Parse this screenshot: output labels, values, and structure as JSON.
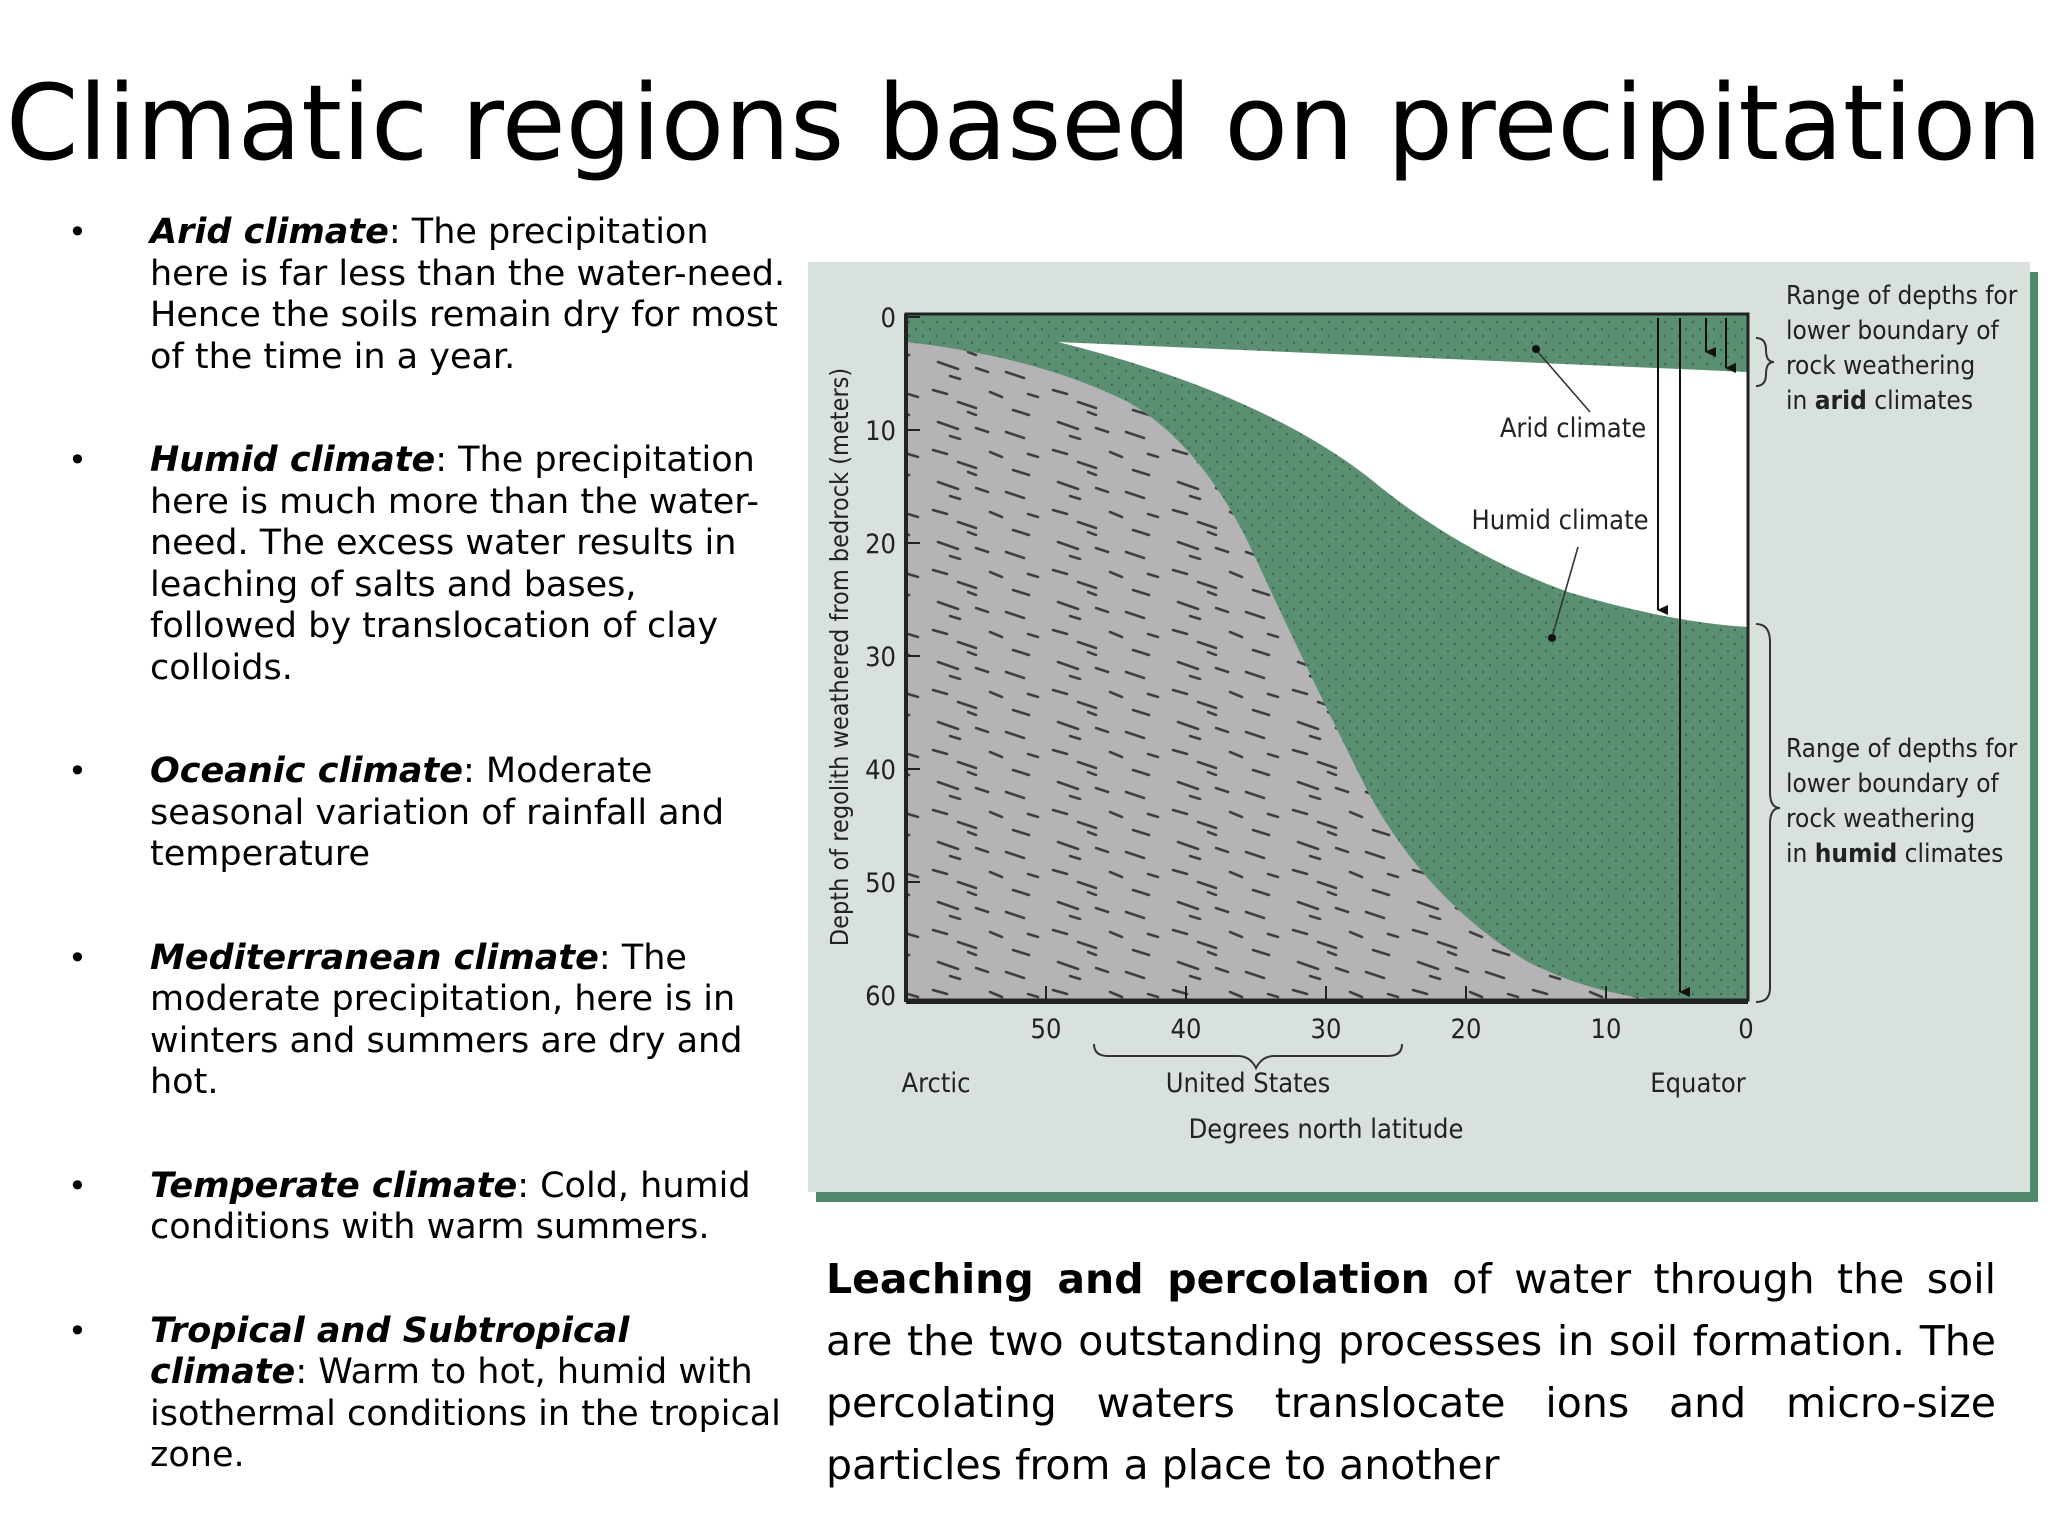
{
  "slide": {
    "title": "Climatic regions based on precipitation",
    "bullets": [
      {
        "term": "Arid climate",
        "text": ": The precipitation here is far less than the water-need. Hence the soils remain dry for most of the time in a year."
      },
      {
        "term": "Humid climate",
        "text": ": The precipitation here is much more than the water-need. The excess water results in leaching of salts and bases, followed by translocation of clay colloids."
      },
      {
        "term": "Oceanic climate",
        "text": ": Moderate seasonal variation of rainfall and temperature"
      },
      {
        "term": "Mediterranean climate",
        "text": ": The moderate precipitation, here is in winters and summers are dry and hot."
      },
      {
        "term": "Temperate climate",
        "text": ": Cold, humid conditions with warm summers."
      },
      {
        "term": "Tropical and Subtropical climate",
        "text": ": Warm to hot, humid with isothermal conditions in the tropical zone."
      }
    ],
    "caption": {
      "bold": "Leaching and percolation",
      "rest": " of water through the soil are the two outstanding processes in soil formation. The percolating waters translocate ions and micro-size particles from a place to another"
    }
  },
  "figure": {
    "y_axis_label": "Depth of regolith weathered from bedrock (meters)",
    "y_ticks": [
      "0",
      "10",
      "20",
      "30",
      "40",
      "50",
      "60"
    ],
    "x_ticks": [
      "50",
      "40",
      "30",
      "20",
      "10",
      "0"
    ],
    "x_axis_label": "Degrees north latitude",
    "region_labels": {
      "arctic": "Arctic",
      "united_states": "United States",
      "equator": "Equator"
    },
    "curve_labels": {
      "arid": "Arid climate",
      "humid": "Humid climate"
    },
    "annotation_arid": [
      "Range of depths for",
      "lower boundary of",
      "rock weathering",
      "in ",
      "arid",
      " climates"
    ],
    "annotation_humid": [
      "Range of depths for",
      "lower boundary of",
      "rock weathering",
      "in ",
      "humid",
      " climates"
    ],
    "colors": {
      "panel": "#d9e1dc",
      "green": "#5a8f72",
      "bedrock": "#b6b3b7",
      "frame": "#222222"
    }
  }
}
